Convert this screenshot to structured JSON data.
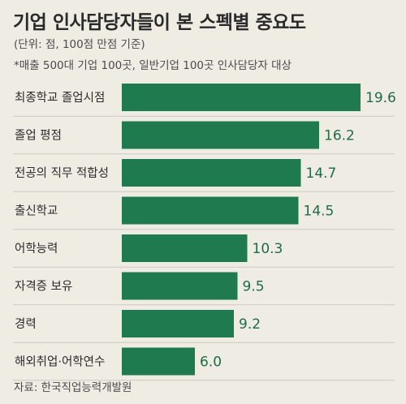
{
  "title": "기업 인사담당자들이 본 스펙별 중요도",
  "subtitle": "(단위: 점, 100점 만점 기준)",
  "note": "*매출 500대 기업 100곳, 일반기업 100곳 인사담당자 대상",
  "source": "자료: 한국직업능력개발원",
  "colors": {
    "bar": "#1f7a50",
    "value_text": "#1f6b48",
    "background": "#efece4"
  },
  "chart_data": {
    "type": "bar",
    "orientation": "horizontal",
    "title": "기업 인사담당자들이 본 스펙별 중요도",
    "subtitle": "(단위: 점, 100점 만점 기준)",
    "categories": [
      "최종학교 졸업시점",
      "졸업 평점",
      "전공의 직무 적합성",
      "출신학교",
      "어학능력",
      "자격증 보유",
      "경력",
      "해외취업·어학연수"
    ],
    "values": [
      19.6,
      16.2,
      14.7,
      14.5,
      10.3,
      9.5,
      9.2,
      6.0
    ],
    "value_labels": [
      "19.6",
      "16.2",
      "14.7",
      "14.5",
      "10.3",
      "9.5",
      "9.2",
      "6.0"
    ],
    "xlim": [
      0,
      20
    ],
    "grid": false,
    "legend": "none"
  }
}
